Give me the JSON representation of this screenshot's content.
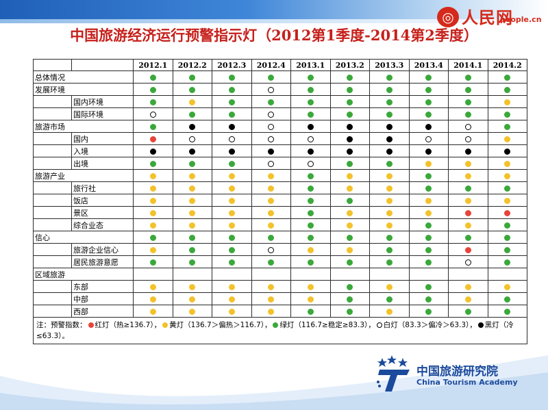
{
  "header": {
    "brand_text": "人民网",
    "brand_url": "people.cn"
  },
  "title": "中国旅游经济运行预警指示灯（2012第1季度-2014第2季度）",
  "colors": {
    "green": "#3aa83a",
    "yellow": "#f3c22b",
    "red": "#e8443a",
    "black": "#000000",
    "white": "#ffffff",
    "title_red": "#c6201b",
    "academy_blue": "#1c4a9c"
  },
  "table": {
    "columns": [
      "2012.1",
      "2012.2",
      "2012.3",
      "2012.4",
      "2013.1",
      "2013.2",
      "2013.3",
      "2013.4",
      "2014.1",
      "2014.2"
    ],
    "rows": [
      {
        "cat": "总体情况",
        "sub": "",
        "lights": [
          "G",
          "G",
          "G",
          "G",
          "G",
          "G",
          "G",
          "G",
          "G",
          "G"
        ]
      },
      {
        "cat": "发展环境",
        "sub": "",
        "lights": [
          "G",
          "G",
          "G",
          "W",
          "G",
          "G",
          "G",
          "G",
          "G",
          "G"
        ]
      },
      {
        "cat": "",
        "sub": "国内环境",
        "lights": [
          "G",
          "Y",
          "G",
          "G",
          "G",
          "G",
          "G",
          "G",
          "G",
          "Y"
        ]
      },
      {
        "cat": "",
        "sub": "国际环境",
        "lights": [
          "W",
          "G",
          "G",
          "W",
          "G",
          "G",
          "G",
          "G",
          "G",
          "G"
        ]
      },
      {
        "cat": "旅游市场",
        "sub": "",
        "lights": [
          "G",
          "B",
          "B",
          "W",
          "B",
          "B",
          "B",
          "B",
          "W",
          "G"
        ]
      },
      {
        "cat": "",
        "sub": "国内",
        "lights": [
          "R",
          "W",
          "W",
          "W",
          "W",
          "B",
          "B",
          "W",
          "W",
          "Y"
        ]
      },
      {
        "cat": "",
        "sub": "入境",
        "lights": [
          "B",
          "B",
          "B",
          "B",
          "B",
          "B",
          "B",
          "B",
          "B",
          "B"
        ]
      },
      {
        "cat": "",
        "sub": "出境",
        "lights": [
          "G",
          "G",
          "G",
          "W",
          "W",
          "G",
          "G",
          "Y",
          "Y",
          "Y"
        ]
      },
      {
        "cat": "旅游产业",
        "sub": "",
        "lights": [
          "Y",
          "Y",
          "Y",
          "Y",
          "G",
          "Y",
          "Y",
          "G",
          "Y",
          "Y"
        ]
      },
      {
        "cat": "",
        "sub": "旅行社",
        "lights": [
          "Y",
          "Y",
          "Y",
          "Y",
          "G",
          "Y",
          "Y",
          "G",
          "G",
          "G"
        ]
      },
      {
        "cat": "",
        "sub": "饭店",
        "lights": [
          "Y",
          "Y",
          "Y",
          "Y",
          "G",
          "G",
          "Y",
          "Y",
          "Y",
          "Y"
        ]
      },
      {
        "cat": "",
        "sub": "景区",
        "lights": [
          "Y",
          "Y",
          "Y",
          "Y",
          "G",
          "Y",
          "Y",
          "Y",
          "R",
          "R"
        ]
      },
      {
        "cat": "",
        "sub": "综合业态",
        "lights": [
          "Y",
          "Y",
          "Y",
          "Y",
          "G",
          "Y",
          "Y",
          "G",
          "Y",
          "G"
        ]
      },
      {
        "cat": "信心",
        "sub": "",
        "lights": [
          "G",
          "G",
          "G",
          "G",
          "G",
          "G",
          "G",
          "G",
          "G",
          "G"
        ]
      },
      {
        "cat": "",
        "sub": "旅游企业信心",
        "lights": [
          "Y",
          "G",
          "G",
          "W",
          "Y",
          "Y",
          "G",
          "G",
          "R",
          "G"
        ]
      },
      {
        "cat": "",
        "sub": "居民旅游意愿",
        "lights": [
          "G",
          "G",
          "G",
          "G",
          "G",
          "G",
          "G",
          "G",
          "W",
          "G"
        ]
      },
      {
        "cat": "区域旅游",
        "sub": "",
        "lights": [
          "",
          "",
          "",
          "",
          "",
          "",
          "",
          "",
          "",
          ""
        ]
      },
      {
        "cat": "",
        "sub": "东部",
        "lights": [
          "Y",
          "Y",
          "Y",
          "Y",
          "Y",
          "G",
          "Y",
          "G",
          "Y",
          "Y"
        ]
      },
      {
        "cat": "",
        "sub": "中部",
        "lights": [
          "Y",
          "Y",
          "Y",
          "Y",
          "Y",
          "G",
          "G",
          "G",
          "Y",
          "G"
        ]
      },
      {
        "cat": "",
        "sub": "西部",
        "lights": [
          "Y",
          "Y",
          "Y",
          "Y",
          "G",
          "G",
          "Y",
          "G",
          "G",
          "G"
        ]
      }
    ],
    "note": {
      "prefix": "注：预警指数：",
      "red": "红灯（热≥136.7），",
      "yellow": "黄灯（136.7＞偏热＞116.7），",
      "green": "绿灯（116.7≥稳定≥83.3），",
      "white": "白灯（83.3＞偏冷＞63.3），",
      "black": "黑灯（冷≤63.3）。"
    }
  },
  "academy": {
    "name_cn": "中国旅游研究院",
    "name_en": "China Tourism Academy"
  }
}
